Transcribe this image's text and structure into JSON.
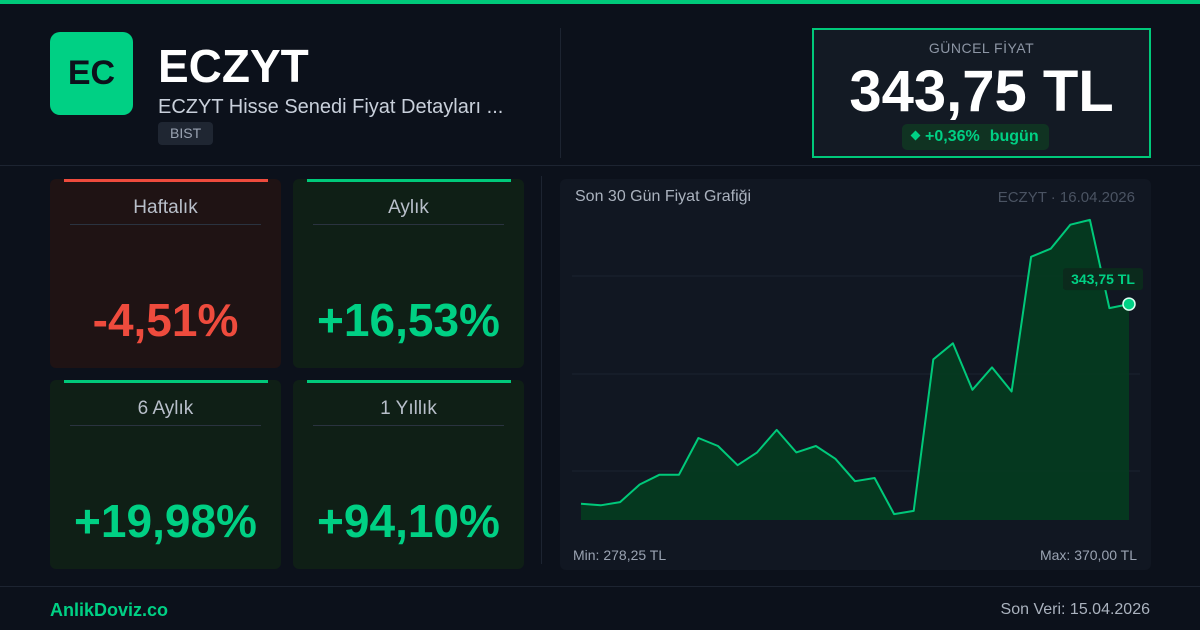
{
  "header": {
    "logo_text": "EC",
    "ticker": "ECZYT",
    "subtitle": "ECZYT Hisse Senedi Fiyat Detayları ...",
    "exchange": "BIST"
  },
  "price": {
    "label": "GÜNCEL FİYAT",
    "value": "343,75 TL",
    "change": "+0,36%",
    "change_suffix": "bugün"
  },
  "cards": [
    {
      "label": "Haftalık",
      "value": "-4,51%",
      "trend": "negative"
    },
    {
      "label": "Aylık",
      "value": "+16,53%",
      "trend": "positive"
    },
    {
      "label": "6 Aylık",
      "value": "+19,98%",
      "trend": "positive"
    },
    {
      "label": "1 Yıllık",
      "value": "+94,10%",
      "trend": "positive"
    }
  ],
  "chart": {
    "title": "Son 30 Gün Fiyat Grafiği",
    "meta": "ECZYT · 16.04.2026",
    "min_label": "Min: 278,25 TL",
    "max_label": "Max: 370,00 TL",
    "last_label": "343,75 TL"
  },
  "chart_data": {
    "type": "area",
    "title": "Son 30 Gün Fiyat Grafiği",
    "ylim": [
      278.25,
      370.0
    ],
    "values": [
      281.5,
      281.0,
      282.0,
      287.5,
      290.5,
      290.5,
      302.0,
      299.5,
      293.5,
      297.5,
      304.5,
      297.5,
      299.5,
      295.5,
      288.5,
      289.5,
      278.25,
      279.25,
      326.5,
      331.5,
      317.0,
      324.0,
      316.5,
      358.5,
      361.0,
      368.5,
      370.0,
      342.5,
      343.75
    ],
    "last_value": 343.75,
    "line_color": "#00c97a",
    "fill_color": "#053a20",
    "grid": true
  },
  "footer": {
    "brand": "AnlikDoviz.co",
    "last_data": "Son Veri: 15.04.2026"
  },
  "colors": {
    "accent": "#00c97a",
    "negative": "#ee4b3d",
    "background": "#0c111b"
  }
}
